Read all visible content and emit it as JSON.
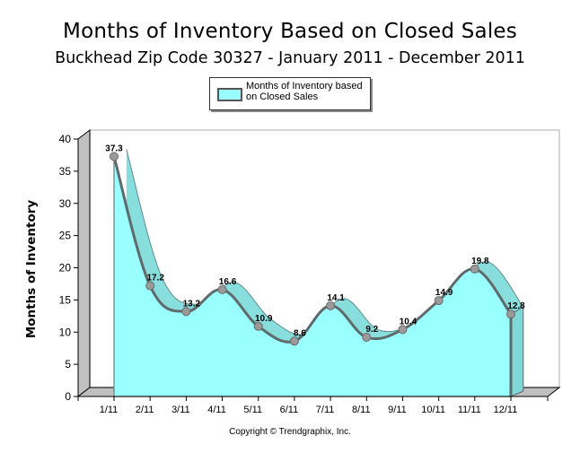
{
  "chart_data": {
    "type": "area",
    "title": "Months of Inventory Based on Closed Sales",
    "subtitle": "Buckhead Zip Code 30327  -  January 2011 - December 2011",
    "xlabel": "",
    "ylabel": "Months of Inventory",
    "categories": [
      "1/11",
      "2/11",
      "3/11",
      "4/11",
      "5/11",
      "6/11",
      "7/11",
      "8/11",
      "9/11",
      "10/11",
      "11/11",
      "12/11"
    ],
    "series": [
      {
        "name": "Months of Inventory based on Closed Sales",
        "legend_lines": [
          "Months of Inventory based",
          "on Closed Sales"
        ],
        "values": [
          37.3,
          17.2,
          13.2,
          16.6,
          10.9,
          8.6,
          14.1,
          9.2,
          10.4,
          14.9,
          19.8,
          12.8
        ],
        "labels": [
          "37.3",
          "17.2",
          "13.2",
          "16.6",
          "10.9",
          "8.6",
          "14.1",
          "9.2",
          "10.4",
          "14.9",
          "19.8",
          "12.8"
        ],
        "color": "#99ffff",
        "line_color": "#5f6b6b"
      }
    ],
    "ylim": [
      0,
      40
    ],
    "yticks": [
      "0",
      "5",
      "10",
      "15",
      "20",
      "25",
      "30",
      "35",
      "40"
    ],
    "grid": false,
    "legend_position": "top-center",
    "footer": "Copyright © Trendgraphix, Inc."
  }
}
